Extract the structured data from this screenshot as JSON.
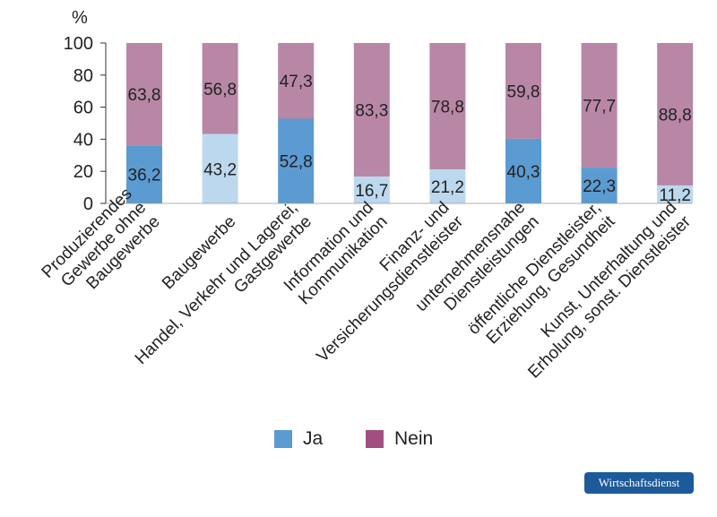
{
  "chart_data": {
    "type": "bar",
    "stacked": true,
    "y_unit": "%",
    "ylim": [
      0,
      100
    ],
    "yticks": [
      0,
      20,
      40,
      60,
      80,
      100
    ],
    "grid": false,
    "legend_position": "bottom",
    "categories": [
      [
        "Produzierendes",
        "Gewerbe ohne",
        "Baugewerbe"
      ],
      [
        "Baugewerbe"
      ],
      [
        "Handel, Verkehr und Lagerei,",
        "Gastgewerbe"
      ],
      [
        "Information und",
        "Kommunikation"
      ],
      [
        "Finanz- und",
        "Versicherungsdienstleister"
      ],
      [
        "unternehmensnahe",
        "Dienstleistungen"
      ],
      [
        "öffentliche Dienstleister,",
        "Erziehung, Gesundheit"
      ],
      [
        "Kunst, Unterhaltung und",
        "Erholung, sonst. Dienstleister"
      ]
    ],
    "series": [
      {
        "name": "Ja",
        "values": [
          "36,2",
          "43,2",
          "52,8",
          "16,7",
          "21,2",
          "40,3",
          "22,3",
          "11,2"
        ]
      },
      {
        "name": "Nein",
        "values": [
          "63,8",
          "56,8",
          "47,3",
          "83,3",
          "78,8",
          "59,8",
          "77,7",
          "88,8"
        ]
      }
    ],
    "ja_color_variant": [
      "dark",
      "light",
      "dark",
      "light",
      "light",
      "dark",
      "dark",
      "light"
    ]
  },
  "colors": {
    "ja_dark": "#5b9bd1",
    "ja_light": "#bcd8ee",
    "nein": "#b887a6",
    "axis": "#333333",
    "legend_ja": "#5b9bd1",
    "legend_nein": "#a14f80",
    "badge_bg": "#1d5a9a"
  },
  "legend": {
    "ja": "Ja",
    "nein": "Nein"
  },
  "source_badge": "Wirtschaftsdienst"
}
